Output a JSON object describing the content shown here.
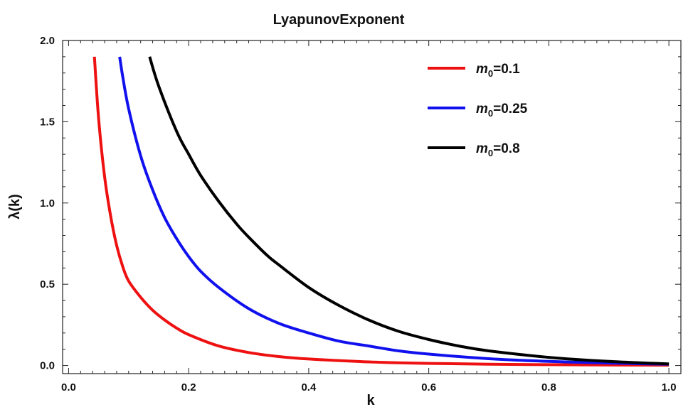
{
  "chart_data": {
    "type": "line",
    "title": "LyapunovExponent",
    "xlabel": "k",
    "ylabel": "λ(k)",
    "xlim": [
      -0.01,
      1.02
    ],
    "ylim": [
      -0.05,
      2.0
    ],
    "xticks": [
      "0.0",
      "0.2",
      "0.4",
      "0.6",
      "0.8",
      "1.0"
    ],
    "yticks": [
      "0.0",
      "0.5",
      "1.0",
      "1.5",
      "2.0"
    ],
    "grid": false,
    "legend_position": "top-right",
    "series": [
      {
        "name": "m0=0.1",
        "legend_base": "m",
        "legend_sub": "0",
        "legend_value": "=0.1",
        "color": "#ee1111",
        "x": [
          0.043,
          0.05,
          0.06,
          0.07,
          0.08,
          0.09,
          0.1,
          0.12,
          0.14,
          0.16,
          0.18,
          0.2,
          0.25,
          0.3,
          0.35,
          0.4,
          0.5,
          0.6,
          0.7,
          0.8,
          0.9,
          1.0
        ],
        "y": [
          1.9,
          1.52,
          1.16,
          0.92,
          0.74,
          0.61,
          0.52,
          0.42,
          0.34,
          0.28,
          0.23,
          0.19,
          0.12,
          0.08,
          0.055,
          0.04,
          0.022,
          0.013,
          0.008,
          0.005,
          0.003,
          0.002
        ]
      },
      {
        "name": "m0=0.25",
        "legend_base": "m",
        "legend_sub": "0",
        "legend_value": "=0.25",
        "color": "#1111ee",
        "x": [
          0.085,
          0.09,
          0.1,
          0.12,
          0.14,
          0.16,
          0.18,
          0.2,
          0.22,
          0.25,
          0.3,
          0.35,
          0.4,
          0.45,
          0.5,
          0.55,
          0.6,
          0.7,
          0.8,
          0.9,
          1.0
        ],
        "y": [
          1.9,
          1.78,
          1.58,
          1.29,
          1.08,
          0.91,
          0.78,
          0.67,
          0.58,
          0.48,
          0.35,
          0.26,
          0.2,
          0.15,
          0.12,
          0.09,
          0.07,
          0.042,
          0.025,
          0.015,
          0.008
        ]
      },
      {
        "name": "m0=0.8",
        "legend_base": "m",
        "legend_sub": "0",
        "legend_value": "=0.8",
        "color": "#000000",
        "x": [
          0.135,
          0.15,
          0.18,
          0.2,
          0.22,
          0.25,
          0.28,
          0.3,
          0.33,
          0.35,
          0.4,
          0.45,
          0.5,
          0.55,
          0.6,
          0.65,
          0.7,
          0.8,
          0.9,
          1.0
        ],
        "y": [
          1.9,
          1.72,
          1.44,
          1.3,
          1.17,
          1.01,
          0.87,
          0.79,
          0.68,
          0.62,
          0.48,
          0.37,
          0.28,
          0.21,
          0.16,
          0.12,
          0.09,
          0.05,
          0.025,
          0.01
        ]
      }
    ]
  }
}
